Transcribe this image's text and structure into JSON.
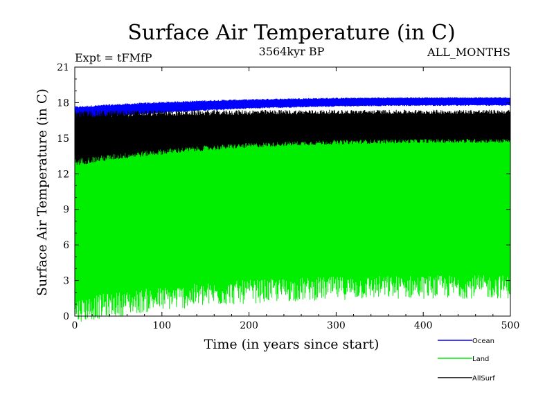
{
  "chart_data": {
    "type": "line",
    "title": "Surface Air Temperature (in C)",
    "subtitle_left": "Expt = tFMfP",
    "subtitle_center": "3564kyr BP",
    "subtitle_right": "ALL_MONTHS",
    "xlabel": "Time (in years since start)",
    "ylabel": "Surface Air Temperature (in C)",
    "xlim": [
      0,
      500
    ],
    "ylim": [
      0,
      21
    ],
    "xticks": [
      0,
      100,
      200,
      300,
      400,
      500
    ],
    "yticks": [
      0,
      3,
      6,
      9,
      12,
      15,
      18,
      21
    ],
    "legend_position": "bottom-right",
    "series": [
      {
        "name": "Ocean",
        "color": "#0000ff",
        "band_start": [
          16.6,
          17.6
        ],
        "band_end": [
          17.8,
          18.4
        ]
      },
      {
        "name": "Land",
        "color": "#00ee00",
        "band_start": [
          0.5,
          14.5
        ],
        "band_end": [
          2.5,
          15.8
        ]
      },
      {
        "name": "AllSurf",
        "color": "#000000",
        "band_start": [
          13.0,
          17.0
        ],
        "band_end": [
          14.8,
          17.2
        ]
      }
    ]
  }
}
